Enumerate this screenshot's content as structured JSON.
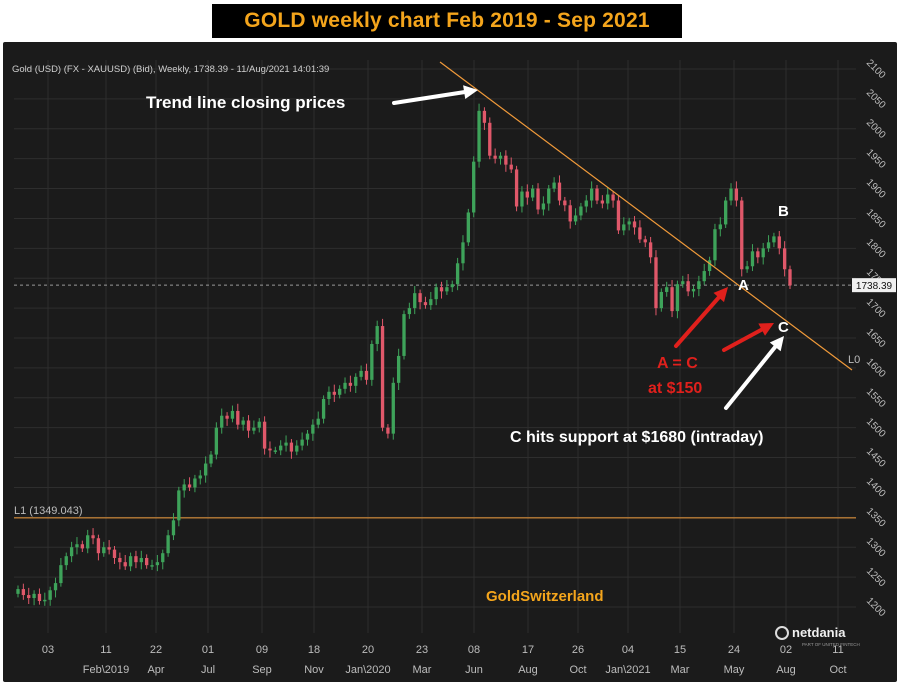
{
  "page_title": "GOLD weekly chart Feb 2019 - Sep 2021",
  "instrument_label": "Gold (USD) (FX - XAUUSD) (Bid), Weekly, 1738.39 - 11/Aug/2021 14:01:39",
  "current_price_label": "1738.39",
  "support_line_label": "L1 (1349.043)",
  "trendline_end_label": "L0",
  "watermark": "GoldSwitzerland",
  "brand": {
    "name": "netdania",
    "tagline": "PART OF UNITED FINTECH"
  },
  "annotations": {
    "trend_text": "Trend line closing prices",
    "point_a": "A",
    "point_b": "B",
    "point_c": "C",
    "a_equals_c": "A = C",
    "at_150": "at $150",
    "c_support": "C hits support  at $1680 (intraday)"
  },
  "colors": {
    "up": "#3ea35a",
    "down": "#e0586a",
    "trend": "#f09a3a",
    "support": "#f09a3a",
    "watermark": "#f4a51c",
    "title": "#f4a51c",
    "red_note": "#e0201c"
  },
  "chart_data": {
    "type": "candlestick",
    "title": "GOLD weekly chart Feb 2019 - Sep 2021",
    "y_axis_position": "right",
    "ylim": [
      1180,
      2110
    ],
    "y_ticks": [
      1200,
      1250,
      1300,
      1350,
      1400,
      1450,
      1500,
      1550,
      1600,
      1650,
      1700,
      1750,
      1800,
      1850,
      1900,
      1950,
      2000,
      2050,
      2100
    ],
    "x_ticks": [
      {
        "day": "03",
        "month": ""
      },
      {
        "day": "11",
        "month": "Feb\\2019"
      },
      {
        "day": "22",
        "month": "Apr"
      },
      {
        "day": "01",
        "month": "Jul"
      },
      {
        "day": "09",
        "month": "Sep"
      },
      {
        "day": "18",
        "month": "Nov"
      },
      {
        "day": "20",
        "month": "Jan\\2020"
      },
      {
        "day": "23",
        "month": "Mar"
      },
      {
        "day": "08",
        "month": "Jun"
      },
      {
        "day": "17",
        "month": "Aug"
      },
      {
        "day": "26",
        "month": "Oct"
      },
      {
        "day": "04",
        "month": "Jan\\2021"
      },
      {
        "day": "15",
        "month": "Mar"
      },
      {
        "day": "24",
        "month": "May"
      },
      {
        "day": "02",
        "month": "Aug"
      },
      {
        "day": "11",
        "month": "Oct"
      }
    ],
    "grid": true,
    "horizontal_lines": [
      {
        "label": "L1 (1349.043)",
        "value": 1349.043
      },
      {
        "label": "1738.39",
        "value": 1738.39
      }
    ],
    "trendline": {
      "from": [
        0.565,
        2070
      ],
      "to": [
        1.0,
        1605
      ]
    },
    "closes": [
      1230,
      1220,
      1215,
      1222,
      1210,
      1212,
      1228,
      1240,
      1270,
      1285,
      1300,
      1305,
      1298,
      1320,
      1315,
      1290,
      1300,
      1296,
      1282,
      1275,
      1268,
      1285,
      1275,
      1282,
      1270,
      1270,
      1275,
      1290,
      1320,
      1345,
      1395,
      1405,
      1400,
      1415,
      1420,
      1440,
      1455,
      1500,
      1520,
      1515,
      1528,
      1505,
      1512,
      1495,
      1500,
      1510,
      1465,
      1462,
      1462,
      1470,
      1475,
      1460,
      1470,
      1480,
      1490,
      1505,
      1515,
      1548,
      1560,
      1555,
      1565,
      1575,
      1570,
      1585,
      1595,
      1580,
      1640,
      1670,
      1500,
      1490,
      1575,
      1620,
      1690,
      1700,
      1725,
      1710,
      1705,
      1715,
      1735,
      1728,
      1735,
      1740,
      1775,
      1810,
      1860,
      1945,
      2030,
      2010,
      1955,
      1950,
      1955,
      1940,
      1932,
      1870,
      1895,
      1885,
      1900,
      1865,
      1875,
      1900,
      1910,
      1880,
      1872,
      1845,
      1855,
      1870,
      1880,
      1900,
      1880,
      1875,
      1890,
      1880,
      1830,
      1840,
      1845,
      1835,
      1815,
      1810,
      1785,
      1700,
      1727,
      1735,
      1695,
      1740,
      1745,
      1728,
      1732,
      1745,
      1762,
      1780,
      1832,
      1840,
      1880,
      1900,
      1880,
      1765,
      1770,
      1795,
      1785,
      1800,
      1810,
      1820,
      1800,
      1765,
      1738
    ]
  }
}
